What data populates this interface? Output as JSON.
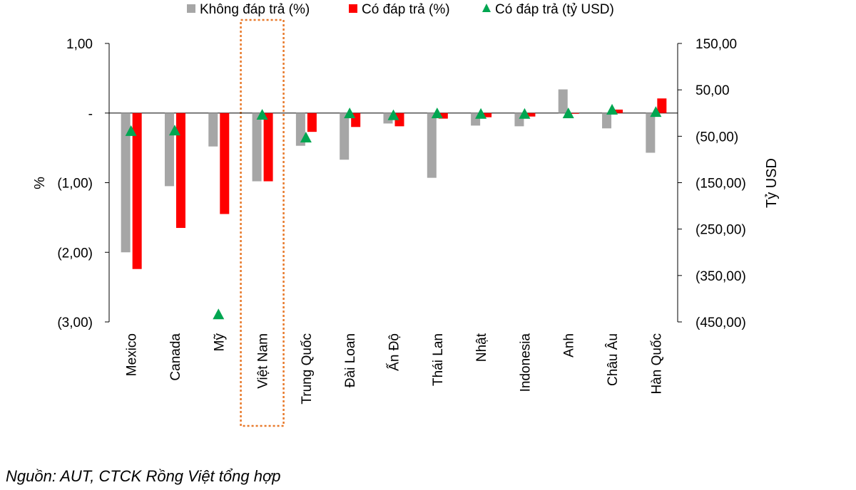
{
  "chart_data": {
    "type": "bar",
    "categories": [
      "Mexico",
      "Canada",
      "Mỹ",
      "Việt Nam",
      "Trung Quốc",
      "Đài Loan",
      "Ấn Độ",
      "Thái Lan",
      "Nhật",
      "Indonesia",
      "Anh",
      "Châu Âu",
      "Hàn Quốc"
    ],
    "series": [
      {
        "name": "Không đáp trả (%)",
        "kind": "bar",
        "axis": "left",
        "color": "#a6a6a6",
        "values": [
          -2.0,
          -1.05,
          -0.48,
          -0.98,
          -0.47,
          -0.67,
          -0.15,
          -0.93,
          -0.18,
          -0.19,
          0.34,
          -0.22,
          -0.57
        ]
      },
      {
        "name": "Có đáp trả (%)",
        "kind": "bar",
        "axis": "left",
        "color": "#ff0000",
        "values": [
          -2.24,
          -1.65,
          -1.45,
          -0.98,
          -0.27,
          -0.2,
          -0.19,
          -0.08,
          -0.06,
          -0.05,
          -0.01,
          0.05,
          0.21
        ]
      },
      {
        "name": "Có đáp trả (tỷ USD)",
        "kind": "marker",
        "axis": "right",
        "color": "#00a651",
        "values": [
          -40,
          -39,
          -435,
          -5,
          -54,
          -2,
          -6,
          -2,
          -3,
          -3,
          -2,
          6,
          1
        ]
      }
    ],
    "ylabel": "%",
    "y2label": "Tỷ USD",
    "ylim": [
      -3,
      1
    ],
    "y2lim": [
      -450,
      150
    ],
    "yticks": [
      {
        "value": 1,
        "label": "1,00"
      },
      {
        "value": 0,
        "label": "-"
      },
      {
        "value": -1,
        "label": "(1,00)"
      },
      {
        "value": -2,
        "label": "(2,00)"
      },
      {
        "value": -3,
        "label": "(3,00)"
      }
    ],
    "y2ticks": [
      {
        "value": 150,
        "label": "150,00"
      },
      {
        "value": 50,
        "label": "50,00"
      },
      {
        "value": -50,
        "label": "(50,00)"
      },
      {
        "value": -150,
        "label": "(150,00)"
      },
      {
        "value": -250,
        "label": "(250,00)"
      },
      {
        "value": -350,
        "label": "(350,00)"
      },
      {
        "value": -450,
        "label": "(450,00)"
      }
    ],
    "highlight_category": "Việt Nam",
    "legend_position": "top"
  },
  "source_note": "Nguồn: AUT, CTCK Rồng Việt tổng hợp"
}
